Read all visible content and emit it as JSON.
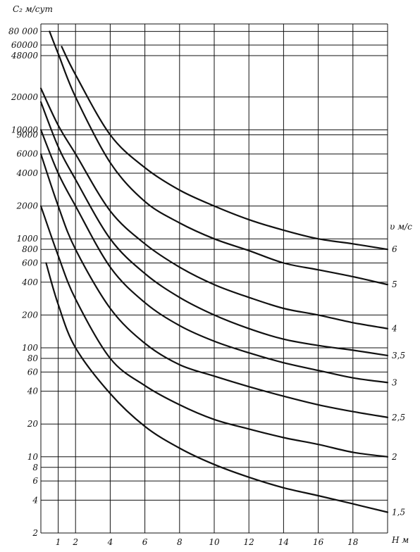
{
  "chart_data": {
    "type": "line",
    "ylabel": "C₂ м/сут",
    "xlabel": "Н м",
    "legend_title": "υ м/с",
    "x_scale": "linear",
    "y_scale": "log",
    "xlim": [
      0,
      20
    ],
    "ylim": [
      2,
      100000
    ],
    "x_ticks": [
      1,
      2,
      4,
      6,
      8,
      10,
      12,
      14,
      16,
      18
    ],
    "y_ticks": [
      2,
      4,
      6,
      8,
      10,
      20,
      40,
      60,
      80,
      100,
      200,
      400,
      600,
      800,
      1000,
      2000,
      4000,
      6000,
      9000,
      10000,
      20000,
      48000,
      60000,
      80000
    ],
    "y_tick_labels": [
      "2",
      "4",
      "6",
      "8",
      "10",
      "20",
      "40",
      "60",
      "80",
      "100",
      "200",
      "400",
      "600",
      "800",
      "1000",
      "2000",
      "4000",
      "6000",
      "9000",
      "10000",
      "20000",
      "48000",
      "60000",
      "80 000"
    ],
    "grid": true,
    "series": [
      {
        "name": "6",
        "label": "6",
        "x": [
          1.2,
          2,
          4,
          6,
          8,
          10,
          12,
          14,
          16,
          18,
          20
        ],
        "y": [
          58000,
          32000,
          9000,
          4500,
          2800,
          2000,
          1500,
          1200,
          1000,
          900,
          800
        ]
      },
      {
        "name": "5",
        "label": "5",
        "x": [
          0.5,
          1,
          2,
          4,
          6,
          8,
          10,
          12,
          14,
          16,
          18,
          20
        ],
        "y": [
          80000,
          50000,
          20000,
          5000,
          2200,
          1400,
          1000,
          780,
          600,
          520,
          450,
          380
        ]
      },
      {
        "name": "4",
        "label": "4",
        "x": [
          0,
          1,
          2,
          4,
          6,
          8,
          10,
          12,
          14,
          16,
          18,
          20
        ],
        "y": [
          24000,
          11000,
          6000,
          1800,
          900,
          550,
          380,
          290,
          230,
          200,
          170,
          150
        ]
      },
      {
        "name": "3,5",
        "label": "3,5",
        "x": [
          0,
          1,
          2,
          4,
          6,
          8,
          10,
          12,
          14,
          16,
          18,
          20
        ],
        "y": [
          18000,
          7000,
          3500,
          1000,
          480,
          290,
          200,
          150,
          120,
          105,
          95,
          85
        ]
      },
      {
        "name": "3",
        "label": "3",
        "x": [
          0,
          1,
          2,
          4,
          6,
          8,
          10,
          12,
          14,
          16,
          18,
          20
        ],
        "y": [
          10000,
          4000,
          2000,
          550,
          260,
          160,
          115,
          90,
          73,
          62,
          53,
          48
        ]
      },
      {
        "name": "2,5",
        "label": "2,5",
        "x": [
          0,
          1,
          2,
          4,
          6,
          8,
          10,
          12,
          14,
          16,
          18,
          20
        ],
        "y": [
          6000,
          2000,
          800,
          230,
          110,
          70,
          55,
          44,
          36,
          30,
          26,
          23
        ]
      },
      {
        "name": "2",
        "label": "2",
        "x": [
          0,
          1,
          2,
          4,
          6,
          8,
          10,
          12,
          14,
          16,
          18,
          20
        ],
        "y": [
          2000,
          700,
          280,
          80,
          45,
          30,
          22,
          18,
          15,
          13,
          11,
          10
        ]
      },
      {
        "name": "1,5",
        "label": "1,5",
        "x": [
          0.3,
          1,
          2,
          4,
          6,
          8,
          10,
          12,
          14,
          16,
          18,
          20
        ],
        "y": [
          600,
          250,
          100,
          38,
          19,
          12,
          8.5,
          6.5,
          5.2,
          4.4,
          3.7,
          3.1
        ]
      }
    ]
  }
}
